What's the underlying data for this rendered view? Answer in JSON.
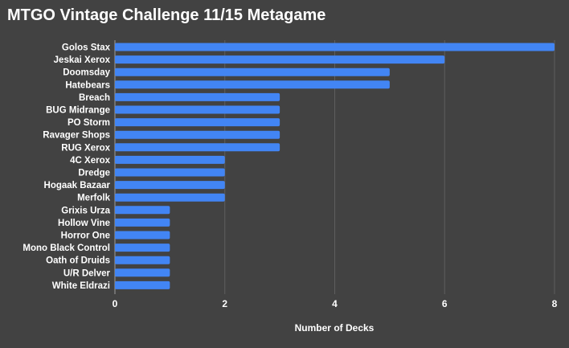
{
  "chart_data": {
    "type": "bar",
    "orientation": "horizontal",
    "title": "MTGO Vintage Challenge 11/15 Metagame",
    "xlabel": "Number of Decks",
    "ylabel": "",
    "xlim": [
      0,
      8
    ],
    "xticks": [
      0,
      2,
      4,
      6,
      8
    ],
    "grid": true,
    "bar_color": "#4285f4",
    "categories": [
      "Golos Stax",
      "Jeskai Xerox",
      "Doomsday",
      "Hatebears",
      "Breach",
      "BUG Midrange",
      "PO Storm",
      "Ravager Shops",
      "RUG Xerox",
      "4C Xerox",
      "Dredge",
      "Hogaak Bazaar",
      "Merfolk",
      "Grixis Urza",
      "Hollow Vine",
      "Horror One",
      "Mono Black Control",
      "Oath of Druids",
      "U/R Delver",
      "White Eldrazi"
    ],
    "values": [
      8,
      6,
      5,
      5,
      3,
      3,
      3,
      3,
      3,
      2,
      2,
      2,
      2,
      1,
      1,
      1,
      1,
      1,
      1,
      1
    ]
  },
  "colors": {
    "background": "#424242",
    "bar": "#4285f4",
    "text": "#ffffff",
    "grid": "#5e5e5e"
  }
}
